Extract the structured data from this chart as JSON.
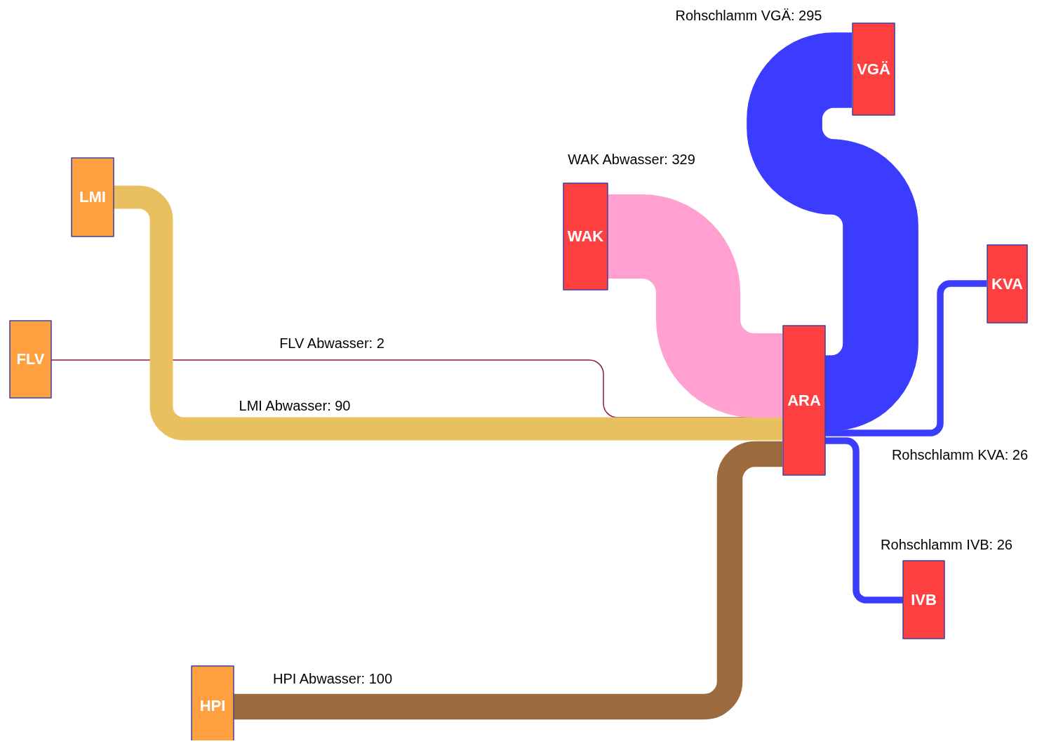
{
  "chart_data": {
    "type": "other",
    "categories": [
      "FLV Abwasser",
      "LMI Abwasser",
      "WAK Abwasser",
      "HPI Abwasser",
      "Rohschlamm VGÄ",
      "Rohschlamm KVA",
      "Rohschlamm IVB"
    ],
    "values": [
      2,
      90,
      329,
      100,
      295,
      26,
      26
    ],
    "value_labels": [
      ": 2",
      ": 90",
      ": 329",
      ": 100",
      ": 295",
      ": 26",
      ": 26"
    ],
    "colors": [
      "#8b1a4a",
      "#e8c060",
      "#ffa0d0",
      "#9b6b3d",
      "#3c3cff",
      "#3c3cff",
      "#3c3cff"
    ],
    "annotations": [
      "FLV",
      "LMI",
      "WAK",
      "HPI",
      "ARA",
      "VGÄ",
      "KVA",
      "IVB"
    ]
  }
}
